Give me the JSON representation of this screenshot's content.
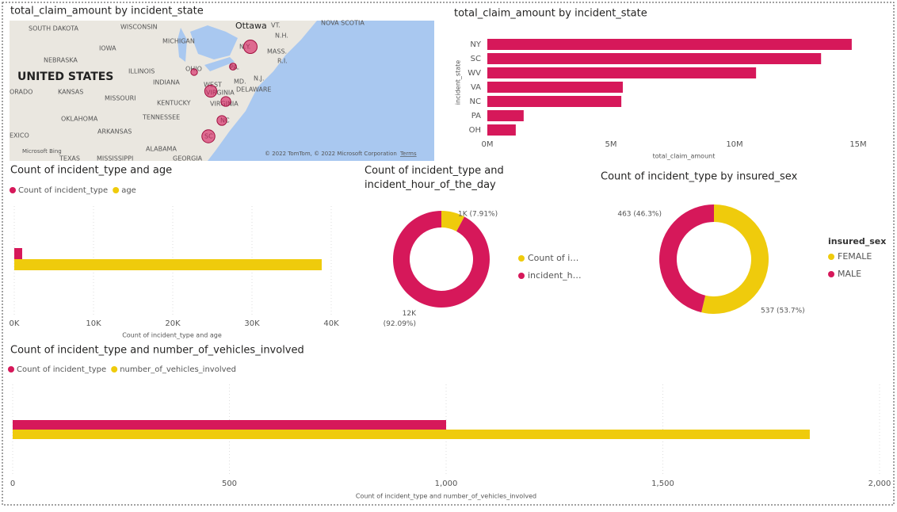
{
  "chart_data": [
    {
      "type": "map",
      "title": "total_claim_amount by incident_state",
      "labels": [
        "SOUTH DAKOTA",
        "WISCONSIN",
        "Ottawa",
        "VT.",
        "NOVA SCOTIA",
        "N.H.",
        "MICHIGAN",
        "IOWA",
        "MASS.",
        "NEBRASKA",
        "N.Y.",
        "R.I.",
        "UNITED STATES",
        "OHIO",
        "ILLINOIS",
        "PA.",
        "N.J.",
        "INDIANA",
        "WEST",
        "MD.",
        "ORADO",
        "KANSAS",
        "MISSOURI",
        "VIRGINIA",
        "DELAWARE",
        "KENTUCKY",
        "VIRGINIA",
        "OKLAHOMA",
        "TENNESSEE",
        "NC",
        "ARKANSAS",
        "EXICO",
        "SC",
        "ALABAMA",
        "TEXAS",
        "MISSISSIPPI",
        "GEORGIA"
      ],
      "attribution": "© 2022 TomTom, © 2022 Microsoft Corporation",
      "terms": "Terms",
      "provider": "Microsoft Bing"
    },
    {
      "type": "hbar",
      "title": "total_claim_amount by incident_state",
      "x_label": "total_claim_amount",
      "y_label": "incident_state",
      "categories": [
        "NY",
        "SC",
        "WV",
        "VA",
        "NC",
        "PA",
        "OH"
      ],
      "series": [
        {
          "name": null,
          "color": "#d6185a",
          "values": [
            14740000,
            13500000,
            10870000,
            5480000,
            5420000,
            1470000,
            1150000
          ]
        }
      ],
      "xlim": [
        0,
        15000000
      ],
      "xticks": [
        {
          "value": 0,
          "label": "0M"
        },
        {
          "value": 5000000,
          "label": "5M"
        },
        {
          "value": 10000000,
          "label": "10M"
        },
        {
          "value": 15000000,
          "label": "15M"
        }
      ],
      "grid": false
    },
    {
      "type": "hbar",
      "title": "Count of incident_type and age",
      "x_label": "Count of incident_type and age",
      "categories": [
        null
      ],
      "series": [
        {
          "name": "Count of incident_type",
          "color": "#d6185a",
          "values": [
            1000
          ]
        },
        {
          "name": "age",
          "color": "#efcb0c",
          "values": [
            38800
          ]
        }
      ],
      "xlim": [
        0,
        40000
      ],
      "xticks": [
        {
          "value": 0,
          "label": "0K"
        },
        {
          "value": 10000,
          "label": "10K"
        },
        {
          "value": 20000,
          "label": "20K"
        },
        {
          "value": 30000,
          "label": "30K"
        },
        {
          "value": 40000,
          "label": "40K"
        }
      ],
      "grid": true
    },
    {
      "type": "donut",
      "title": "Count of incident_type and incident_hour_of_the_day",
      "categories": [
        "Count of i…",
        "incident_h…"
      ],
      "colors": [
        "#efcb0c",
        "#d6185a"
      ],
      "values": [
        1000,
        11644
      ],
      "value_labels": [
        "1K (7.91%)",
        "12K (92.09%)"
      ]
    },
    {
      "type": "donut",
      "title": "Count of incident_type by insured_sex",
      "legend_title": "insured_sex",
      "categories": [
        "FEMALE",
        "MALE"
      ],
      "colors": [
        "#efcb0c",
        "#d6185a"
      ],
      "values": [
        537,
        463
      ],
      "value_labels": [
        "537 (53.7%)",
        "463 (46.3%)"
      ]
    },
    {
      "type": "hbar",
      "title": "Count of incident_type and number_of_vehicles_involved",
      "x_label": "Count of incident_type and number_of_vehicles_involved",
      "categories": [
        null
      ],
      "series": [
        {
          "name": "Count of incident_type",
          "color": "#d6185a",
          "values": [
            1000
          ]
        },
        {
          "name": "number_of_vehicles_involved",
          "color": "#efcb0c",
          "values": [
            1839
          ]
        }
      ],
      "xlim": [
        0,
        2000
      ],
      "xticks": [
        0,
        500,
        {
          "value": 1000,
          "label": "1,000"
        },
        {
          "value": 1500,
          "label": "1,500"
        },
        {
          "value": 2000,
          "label": "2,000"
        }
      ],
      "grid": true
    }
  ]
}
